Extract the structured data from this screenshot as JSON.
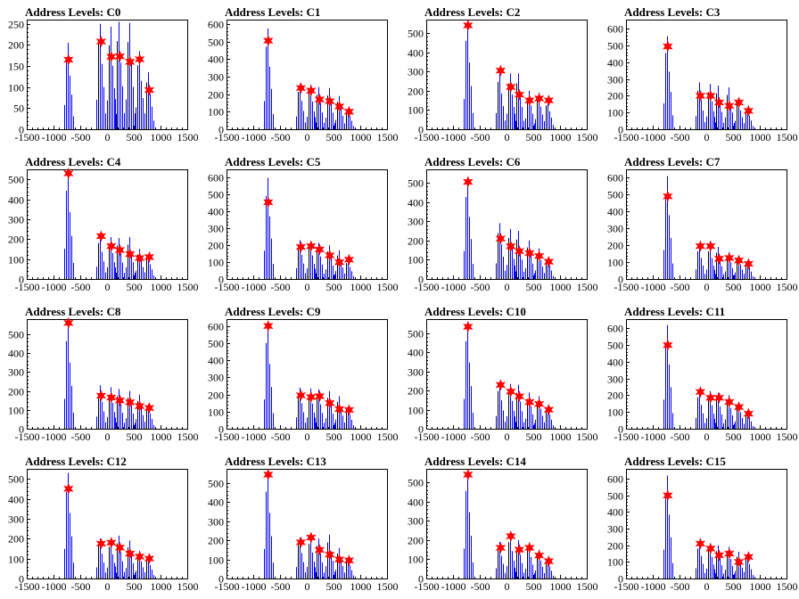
{
  "chart_data": [
    {
      "type": "bar",
      "title": "Address Levels: C0",
      "xlabel": "",
      "ylabel": "",
      "xlim": [
        -1500,
        1500
      ],
      "ylim": [
        0,
        260
      ],
      "xticks": [
        -1500,
        -1000,
        -500,
        0,
        500,
        1000,
        1500
      ],
      "yticks": [
        0,
        50,
        100,
        150,
        200,
        250
      ],
      "marker_x": [
        -720,
        -110,
        80,
        240,
        430,
        610,
        790
      ],
      "marker_y": [
        165,
        208,
        172,
        173,
        160,
        166,
        93
      ],
      "peaks": [
        [
          -720,
          205
        ],
        [
          -110,
          250
        ],
        [
          80,
          243
        ],
        [
          240,
          255
        ],
        [
          430,
          252
        ],
        [
          610,
          185
        ],
        [
          790,
          135
        ]
      ]
    },
    {
      "type": "bar",
      "title": "Address Levels: C1",
      "xlabel": "",
      "ylabel": "",
      "xlim": [
        -1500,
        1500
      ],
      "ylim": [
        0,
        625
      ],
      "xticks": [
        -1500,
        -1000,
        -500,
        0,
        500,
        1000,
        1500
      ],
      "yticks": [
        0,
        100,
        200,
        300,
        400,
        500,
        600
      ],
      "marker_x": [
        -720,
        -110,
        80,
        240,
        430,
        610,
        790
      ],
      "marker_y": [
        505,
        235,
        220,
        170,
        160,
        130,
        100
      ],
      "peaks": [
        [
          -720,
          575
        ],
        [
          -110,
          260
        ],
        [
          80,
          255
        ],
        [
          240,
          240
        ],
        [
          430,
          235
        ],
        [
          610,
          190
        ],
        [
          790,
          120
        ]
      ]
    },
    {
      "type": "bar",
      "title": "Address Levels: C2",
      "xlabel": "",
      "ylabel": "",
      "xlim": [
        -1500,
        1500
      ],
      "ylim": [
        0,
        570
      ],
      "xticks": [
        -1500,
        -1000,
        -500,
        0,
        500,
        1000,
        1500
      ],
      "yticks": [
        0,
        100,
        200,
        300,
        400,
        500
      ],
      "marker_x": [
        -720,
        -110,
        80,
        240,
        430,
        610,
        790
      ],
      "marker_y": [
        540,
        305,
        220,
        180,
        150,
        160,
        150
      ],
      "peaks": [
        [
          -720,
          560
        ],
        [
          -110,
          300
        ],
        [
          80,
          290
        ],
        [
          240,
          290
        ],
        [
          430,
          200
        ],
        [
          610,
          190
        ],
        [
          790,
          150
        ]
      ]
    },
    {
      "type": "bar",
      "title": "Address Levels: C3",
      "xlabel": "",
      "ylabel": "",
      "xlim": [
        -1500,
        1500
      ],
      "ylim": [
        0,
        655
      ],
      "xticks": [
        -1500,
        -1000,
        -500,
        0,
        500,
        1000,
        1500
      ],
      "yticks": [
        0,
        100,
        200,
        300,
        400,
        500,
        600
      ],
      "marker_x": [
        -720,
        -110,
        80,
        240,
        430,
        610,
        790
      ],
      "marker_y": [
        495,
        200,
        200,
        160,
        140,
        160,
        110
      ],
      "peaks": [
        [
          -720,
          555
        ],
        [
          -110,
          280
        ],
        [
          80,
          270
        ],
        [
          240,
          260
        ],
        [
          430,
          250
        ],
        [
          610,
          180
        ],
        [
          790,
          130
        ]
      ]
    },
    {
      "type": "bar",
      "title": "Address Levels: C4",
      "xlabel": "",
      "ylabel": "",
      "xlim": [
        -1500,
        1500
      ],
      "ylim": [
        0,
        550
      ],
      "xticks": [
        -1500,
        -1000,
        -500,
        0,
        500,
        1000,
        1500
      ],
      "yticks": [
        0,
        100,
        200,
        300,
        400,
        500
      ],
      "marker_x": [
        -720,
        -110,
        80,
        240,
        430,
        610,
        790
      ],
      "marker_y": [
        530,
        215,
        165,
        145,
        125,
        105,
        110
      ],
      "peaks": [
        [
          -720,
          540
        ],
        [
          -110,
          220
        ],
        [
          80,
          210
        ],
        [
          240,
          205
        ],
        [
          430,
          210
        ],
        [
          610,
          150
        ],
        [
          790,
          120
        ]
      ]
    },
    {
      "type": "bar",
      "title": "Address Levels: C5",
      "xlabel": "",
      "ylabel": "",
      "xlim": [
        -1500,
        1500
      ],
      "ylim": [
        0,
        650
      ],
      "xticks": [
        -1500,
        -1000,
        -500,
        0,
        500,
        1000,
        1500
      ],
      "yticks": [
        0,
        100,
        200,
        300,
        400,
        500,
        600
      ],
      "marker_x": [
        -720,
        -110,
        80,
        240,
        430,
        610,
        790
      ],
      "marker_y": [
        455,
        190,
        195,
        175,
        140,
        100,
        115
      ],
      "peaks": [
        [
          -720,
          600
        ],
        [
          -110,
          230
        ],
        [
          80,
          225
        ],
        [
          240,
          215
        ],
        [
          430,
          200
        ],
        [
          610,
          170
        ],
        [
          790,
          115
        ]
      ]
    },
    {
      "type": "bar",
      "title": "Address Levels: C6",
      "xlabel": "",
      "ylabel": "",
      "xlim": [
        -1500,
        1500
      ],
      "ylim": [
        0,
        570
      ],
      "xticks": [
        -1500,
        -1000,
        -500,
        0,
        500,
        1000,
        1500
      ],
      "yticks": [
        0,
        100,
        200,
        300,
        400,
        500
      ],
      "marker_x": [
        -720,
        -110,
        80,
        240,
        430,
        610,
        790
      ],
      "marker_y": [
        505,
        210,
        170,
        145,
        135,
        120,
        90
      ],
      "peaks": [
        [
          -720,
          520
        ],
        [
          -110,
          290
        ],
        [
          80,
          260
        ],
        [
          240,
          250
        ],
        [
          430,
          200
        ],
        [
          610,
          160
        ],
        [
          790,
          110
        ]
      ]
    },
    {
      "type": "bar",
      "title": "Address Levels: C7",
      "xlabel": "",
      "ylabel": "",
      "xlim": [
        -1500,
        1500
      ],
      "ylim": [
        0,
        650
      ],
      "xticks": [
        -1500,
        -1000,
        -500,
        0,
        500,
        1000,
        1500
      ],
      "yticks": [
        0,
        100,
        200,
        300,
        400,
        500,
        600
      ],
      "marker_x": [
        -720,
        -110,
        80,
        240,
        430,
        610,
        790
      ],
      "marker_y": [
        490,
        195,
        195,
        120,
        125,
        110,
        90
      ],
      "peaks": [
        [
          -720,
          610
        ],
        [
          -110,
          200
        ],
        [
          80,
          200
        ],
        [
          240,
          190
        ],
        [
          430,
          160
        ],
        [
          610,
          140
        ],
        [
          790,
          110
        ]
      ]
    },
    {
      "type": "bar",
      "title": "Address Levels: C8",
      "xlabel": "",
      "ylabel": "",
      "xlim": [
        -1500,
        1500
      ],
      "ylim": [
        0,
        580
      ],
      "xticks": [
        -1500,
        -1000,
        -500,
        0,
        500,
        1000,
        1500
      ],
      "yticks": [
        0,
        100,
        200,
        300,
        400,
        500
      ],
      "marker_x": [
        -720,
        -110,
        80,
        240,
        430,
        610,
        790
      ],
      "marker_y": [
        560,
        175,
        165,
        150,
        140,
        120,
        110
      ],
      "peaks": [
        [
          -720,
          565
        ],
        [
          -110,
          230
        ],
        [
          80,
          220
        ],
        [
          240,
          210
        ],
        [
          430,
          200
        ],
        [
          610,
          180
        ],
        [
          790,
          130
        ]
      ]
    },
    {
      "type": "bar",
      "title": "Address Levels: C9",
      "xlabel": "",
      "ylabel": "",
      "xlim": [
        -1500,
        1500
      ],
      "ylim": [
        0,
        640
      ],
      "xticks": [
        -1500,
        -1000,
        -500,
        0,
        500,
        1000,
        1500
      ],
      "yticks": [
        0,
        100,
        200,
        300,
        400,
        500,
        600
      ],
      "marker_x": [
        -720,
        -110,
        80,
        240,
        430,
        610,
        790
      ],
      "marker_y": [
        600,
        195,
        185,
        190,
        150,
        115,
        110
      ],
      "peaks": [
        [
          -720,
          610
        ],
        [
          -110,
          240
        ],
        [
          80,
          235
        ],
        [
          240,
          230
        ],
        [
          430,
          220
        ],
        [
          610,
          190
        ],
        [
          790,
          130
        ]
      ]
    },
    {
      "type": "bar",
      "title": "Address Levels: C10",
      "xlabel": "",
      "ylabel": "",
      "xlim": [
        -1500,
        1500
      ],
      "ylim": [
        0,
        575
      ],
      "xticks": [
        -1500,
        -1000,
        -500,
        0,
        500,
        1000,
        1500
      ],
      "yticks": [
        0,
        100,
        200,
        300,
        400,
        500
      ],
      "marker_x": [
        -720,
        -110,
        80,
        240,
        430,
        610,
        790
      ],
      "marker_y": [
        535,
        230,
        195,
        170,
        140,
        130,
        100
      ],
      "peaks": [
        [
          -720,
          560
        ],
        [
          -110,
          240
        ],
        [
          80,
          235
        ],
        [
          240,
          230
        ],
        [
          430,
          190
        ],
        [
          610,
          170
        ],
        [
          790,
          120
        ]
      ]
    },
    {
      "type": "bar",
      "title": "Address Levels: C11",
      "xlabel": "",
      "ylabel": "",
      "xlim": [
        -1500,
        1500
      ],
      "ylim": [
        0,
        655
      ],
      "xticks": [
        -1500,
        -1000,
        -500,
        0,
        500,
        1000,
        1500
      ],
      "yticks": [
        0,
        100,
        200,
        300,
        400,
        500,
        600
      ],
      "marker_x": [
        -720,
        -110,
        80,
        240,
        430,
        610,
        790
      ],
      "marker_y": [
        500,
        220,
        185,
        185,
        160,
        130,
        90
      ],
      "peaks": [
        [
          -720,
          620
        ],
        [
          -110,
          230
        ],
        [
          80,
          225
        ],
        [
          240,
          215
        ],
        [
          430,
          200
        ],
        [
          610,
          160
        ],
        [
          790,
          110
        ]
      ]
    },
    {
      "type": "bar",
      "title": "Address Levels: C12",
      "xlabel": "",
      "ylabel": "",
      "xlim": [
        -1500,
        1500
      ],
      "ylim": [
        0,
        550
      ],
      "xticks": [
        -1500,
        -1000,
        -500,
        0,
        500,
        1000,
        1500
      ],
      "yticks": [
        0,
        100,
        200,
        300,
        400,
        500
      ],
      "marker_x": [
        -720,
        -110,
        80,
        240,
        430,
        610,
        790
      ],
      "marker_y": [
        450,
        175,
        180,
        155,
        125,
        110,
        100
      ],
      "peaks": [
        [
          -720,
          530
        ],
        [
          -110,
          200
        ],
        [
          80,
          195
        ],
        [
          240,
          215
        ],
        [
          430,
          190
        ],
        [
          610,
          140
        ],
        [
          790,
          110
        ]
      ]
    },
    {
      "type": "bar",
      "title": "Address Levels: C13",
      "xlabel": "",
      "ylabel": "",
      "xlim": [
        -1500,
        1500
      ],
      "ylim": [
        0,
        575
      ],
      "xticks": [
        -1500,
        -1000,
        -500,
        0,
        500,
        1000,
        1500
      ],
      "yticks": [
        0,
        100,
        200,
        300,
        400,
        500
      ],
      "marker_x": [
        -720,
        -110,
        80,
        240,
        430,
        610,
        790
      ],
      "marker_y": [
        545,
        190,
        215,
        150,
        125,
        100,
        95
      ],
      "peaks": [
        [
          -720,
          555
        ],
        [
          -110,
          215
        ],
        [
          80,
          220
        ],
        [
          240,
          210
        ],
        [
          430,
          230
        ],
        [
          610,
          160
        ],
        [
          790,
          110
        ]
      ]
    },
    {
      "type": "bar",
      "title": "Address Levels: C14",
      "xlabel": "",
      "ylabel": "",
      "xlim": [
        -1500,
        1500
      ],
      "ylim": [
        0,
        570
      ],
      "xticks": [
        -1500,
        -1000,
        -500,
        0,
        500,
        1000,
        1500
      ],
      "yticks": [
        0,
        100,
        200,
        300,
        400,
        500
      ],
      "marker_x": [
        -720,
        -110,
        80,
        240,
        430,
        610,
        790
      ],
      "marker_y": [
        540,
        160,
        220,
        150,
        160,
        120,
        90
      ],
      "peaks": [
        [
          -720,
          555
        ],
        [
          -110,
          190
        ],
        [
          80,
          230
        ],
        [
          240,
          200
        ],
        [
          430,
          180
        ],
        [
          610,
          150
        ],
        [
          790,
          100
        ]
      ]
    },
    {
      "type": "bar",
      "title": "Address Levels: C15",
      "xlabel": "",
      "ylabel": "",
      "xlim": [
        -1500,
        1500
      ],
      "ylim": [
        0,
        660
      ],
      "xticks": [
        -1500,
        -1000,
        -500,
        0,
        500,
        1000,
        1500
      ],
      "yticks": [
        0,
        100,
        200,
        300,
        400,
        500,
        600
      ],
      "marker_x": [
        -720,
        -110,
        80,
        240,
        430,
        610,
        790
      ],
      "marker_y": [
        500,
        210,
        180,
        140,
        150,
        100,
        130
      ],
      "peaks": [
        [
          -720,
          620
        ],
        [
          -110,
          220
        ],
        [
          80,
          210
        ],
        [
          240,
          200
        ],
        [
          430,
          190
        ],
        [
          610,
          160
        ],
        [
          790,
          140
        ]
      ]
    }
  ],
  "colors": {
    "histogram": "#0000ff",
    "histogram_dark": "#000000",
    "marker": "#ff0000",
    "axis": "#000000",
    "background": "#ffffff"
  }
}
